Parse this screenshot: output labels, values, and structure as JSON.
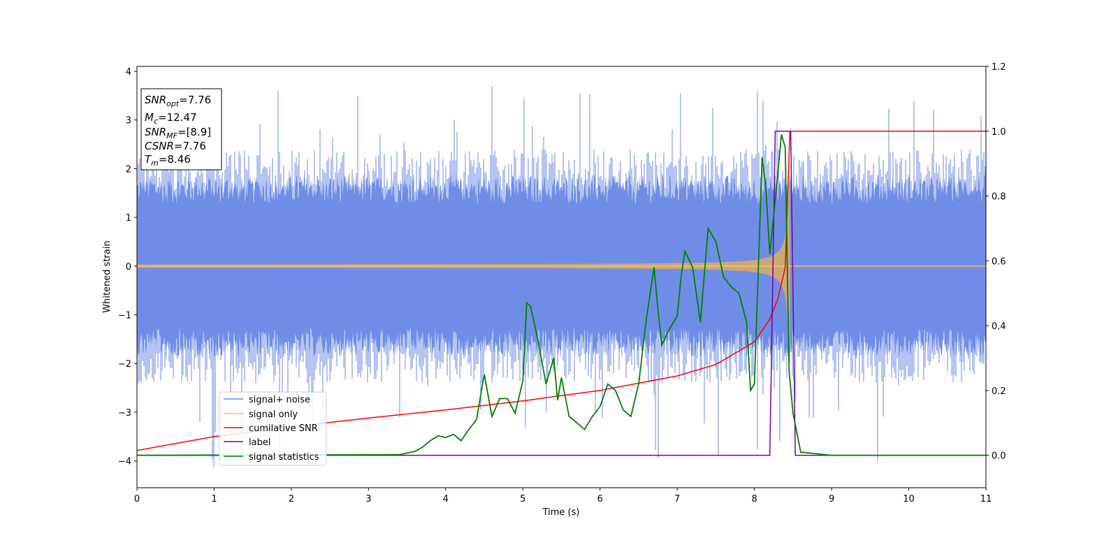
{
  "chart_data": {
    "type": "line",
    "xlabel": "Time (s)",
    "ylabel": "Whitened strain",
    "xlim": [
      0,
      11
    ],
    "ylim_left": [
      -4.55,
      4.1
    ],
    "ylim_right": [
      -0.1,
      1.2
    ],
    "xticks": [
      "0",
      "1",
      "2",
      "3",
      "4",
      "5",
      "6",
      "7",
      "8",
      "9",
      "10",
      "11"
    ],
    "yticks_left": [
      "4",
      "3",
      "2",
      "1",
      "0",
      "−1",
      "−2",
      "−3",
      "−4"
    ],
    "yticks_right": [
      "1.2",
      "1.0",
      "0.8",
      "0.6",
      "0.4",
      "0.2",
      "0.0"
    ],
    "info_box": {
      "snr_opt": {
        "main": "SNR",
        "sub": "opt",
        "value": "=7.76"
      },
      "mc": {
        "main": "M",
        "sub": "c",
        "value": "=12.47"
      },
      "snr_mf": {
        "main": "SNR",
        "sub": "MF",
        "value": "=[8.9]"
      },
      "csnr": {
        "main": "CSNR",
        "sub": "",
        "value": "=7.76"
      },
      "tm": {
        "main": "T",
        "sub": "m",
        "value": "=8.46"
      }
    },
    "legend": {
      "position": "lower-left",
      "entries": [
        "signal+ noise",
        "signal only",
        "cumilative SNR",
        "label",
        "signal statistics"
      ]
    },
    "series": [
      {
        "name": "signal+ noise",
        "axis": "left",
        "color": "#6b8ae5",
        "noise_amplitude_typical": 1.5,
        "noise_peak_max": 3.7,
        "noise_peak_min": -4.15
      },
      {
        "name": "signal only",
        "axis": "left",
        "color": "#f5c16c",
        "chirp_start": 0,
        "chirp_merger": 8.46,
        "peak_amplitude": 1.75
      },
      {
        "name": "cumilative SNR",
        "axis": "right",
        "color": "#ff0000",
        "x": [
          0,
          1,
          2,
          3,
          4,
          5,
          6,
          7,
          7.5,
          8,
          8.2,
          8.3,
          8.4,
          8.46,
          11
        ],
        "y": [
          0.015,
          0.058,
          0.088,
          0.115,
          0.14,
          0.168,
          0.2,
          0.245,
          0.28,
          0.35,
          0.42,
          0.48,
          0.58,
          1.0,
          1.0
        ]
      },
      {
        "name": "label",
        "axis": "right",
        "color": "#7b0096",
        "x": [
          0,
          8.2,
          8.27,
          8.47,
          8.53,
          11
        ],
        "y": [
          0,
          0,
          1,
          1,
          0,
          0
        ]
      },
      {
        "name": "signal statistics",
        "axis": "right",
        "color": "#008000",
        "x": [
          0,
          3.4,
          3.6,
          3.7,
          3.8,
          3.9,
          4.0,
          4.1,
          4.2,
          4.3,
          4.4,
          4.5,
          4.6,
          4.7,
          4.8,
          4.9,
          5.0,
          5.05,
          5.1,
          5.2,
          5.3,
          5.4,
          5.45,
          5.5,
          5.6,
          5.7,
          5.8,
          5.9,
          6.0,
          6.1,
          6.2,
          6.3,
          6.4,
          6.5,
          6.6,
          6.7,
          6.75,
          6.8,
          6.9,
          7.0,
          7.05,
          7.1,
          7.2,
          7.3,
          7.4,
          7.5,
          7.6,
          7.7,
          7.8,
          7.9,
          7.95,
          8.0,
          8.1,
          8.15,
          8.2,
          8.3,
          8.35,
          8.4,
          8.45,
          8.5,
          8.6,
          9.0,
          11
        ],
        "y": [
          0,
          0.002,
          0.012,
          0.025,
          0.045,
          0.06,
          0.055,
          0.065,
          0.045,
          0.08,
          0.11,
          0.25,
          0.12,
          0.175,
          0.175,
          0.13,
          0.23,
          0.47,
          0.46,
          0.35,
          0.22,
          0.3,
          0.17,
          0.24,
          0.12,
          0.1,
          0.08,
          0.12,
          0.15,
          0.22,
          0.2,
          0.14,
          0.12,
          0.22,
          0.42,
          0.58,
          0.45,
          0.34,
          0.39,
          0.43,
          0.55,
          0.63,
          0.58,
          0.41,
          0.7,
          0.66,
          0.55,
          0.52,
          0.5,
          0.41,
          0.2,
          0.22,
          0.92,
          0.82,
          0.62,
          0.86,
          0.99,
          0.95,
          0.26,
          0.13,
          0.01,
          0.0,
          0.0
        ]
      }
    ]
  }
}
